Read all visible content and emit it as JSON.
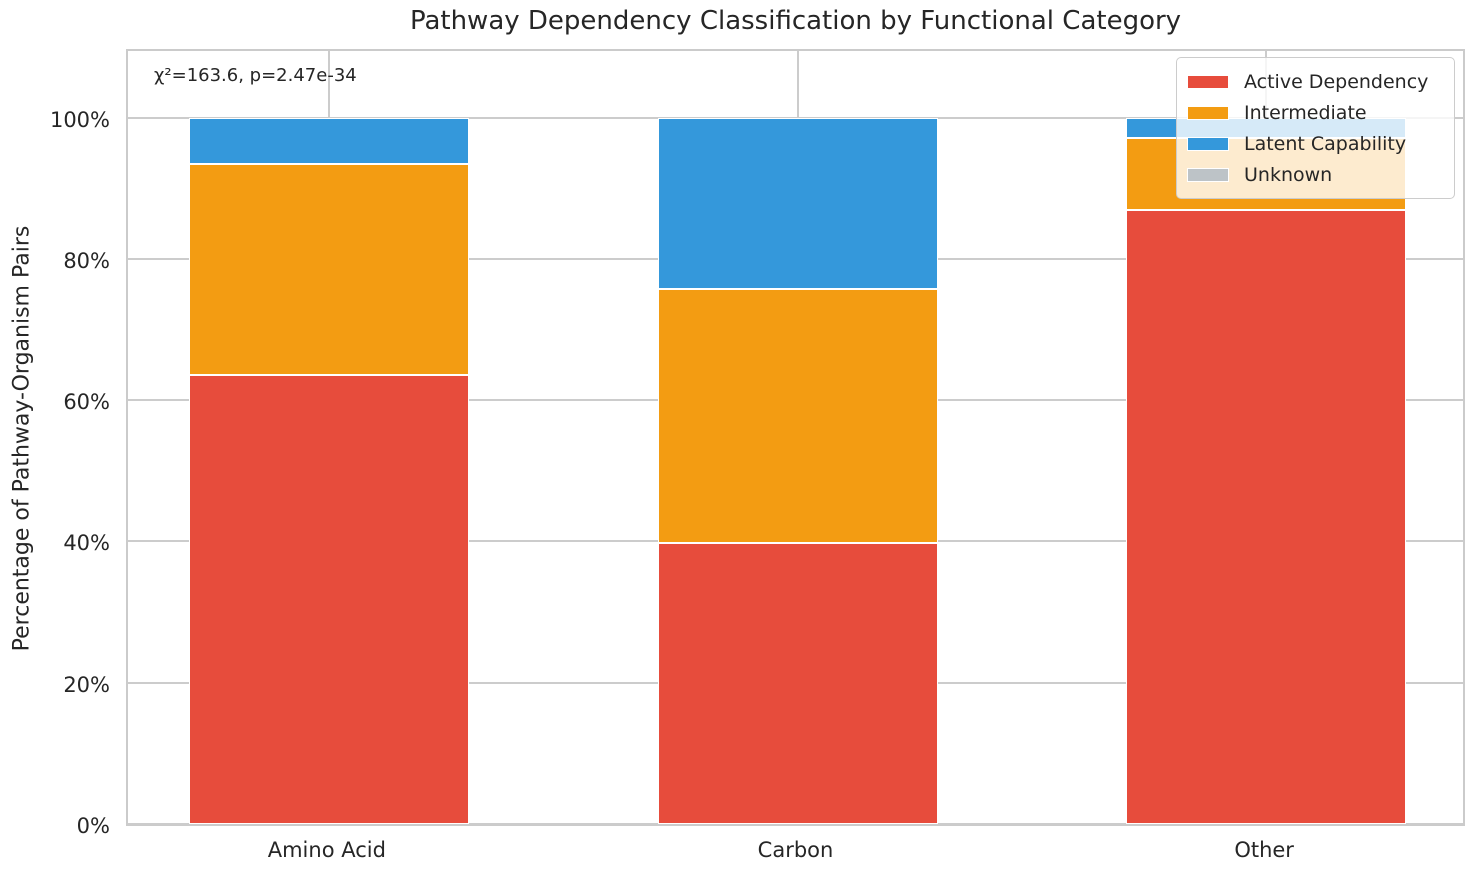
{
  "title": "Pathway Dependency Classification by Functional Category",
  "y_axis_label": "Percentage of Pathway-Organism Pairs",
  "annotation": "χ²=163.6, p=2.47e-34",
  "style_colors": {
    "background": "#ffffff",
    "grid": "#cccccc",
    "text": "#262626",
    "active_dependency": "#e74c3c",
    "intermediate": "#f39c12",
    "latent_capability": "#3498db",
    "unknown": "#bdc3c7"
  },
  "chart_data": {
    "type": "bar",
    "stacked": true,
    "title": "Pathway Dependency Classification by Functional Category",
    "xlabel": "",
    "ylabel": "Percentage of Pathway-Organism Pairs",
    "annotation": "χ²=163.6, p=2.47e-34",
    "categories": [
      "Amino Acid",
      "Carbon",
      "Other"
    ],
    "series": [
      {
        "name": "Active Dependency",
        "color": "#e74c3c",
        "values": [
          63.5,
          39.8,
          86.9
        ]
      },
      {
        "name": "Intermediate",
        "color": "#f39c12",
        "values": [
          30.0,
          36.0,
          10.2
        ]
      },
      {
        "name": "Latent Capability",
        "color": "#3498db",
        "values": [
          6.5,
          24.2,
          2.9
        ]
      },
      {
        "name": "Unknown",
        "color": "#bdc3c7",
        "values": [
          0.0,
          0.0,
          0.0
        ]
      }
    ],
    "ylim": [
      0,
      110
    ],
    "yticks": [
      0,
      20,
      40,
      60,
      80,
      100
    ],
    "ytick_labels": [
      "0%",
      "20%",
      "40%",
      "60%",
      "80%",
      "100%"
    ],
    "grid": true,
    "legend_position": "upper right"
  }
}
